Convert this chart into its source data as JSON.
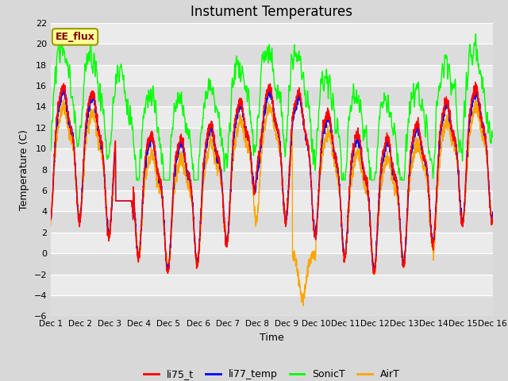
{
  "title": "Instument Temperatures",
  "xlabel": "Time",
  "ylabel": "Temperature (C)",
  "ylim": [
    -6,
    22
  ],
  "yticks": [
    -6,
    -4,
    -2,
    0,
    2,
    4,
    6,
    8,
    10,
    12,
    14,
    16,
    18,
    20,
    22
  ],
  "x_tick_labels": [
    "Dec 1",
    "Dec 2",
    "Dec 3",
    "Dec 4",
    "Dec 5",
    "Dec 6",
    "Dec 7",
    "Dec 8",
    "Dec 9",
    "Dec 10",
    "Dec 11",
    "Dec 12",
    "Dec 13",
    "Dec 14",
    "Dec 15",
    "Dec 16"
  ],
  "line_colors": [
    "red",
    "blue",
    "lime",
    "orange"
  ],
  "line_labels": [
    "li75_t",
    "li77_temp",
    "SonicT",
    "AirT"
  ],
  "annotation_text": "EE_flux",
  "annotation_color": "#800000",
  "annotation_bg": "#ffff99",
  "title_fontsize": 12,
  "axis_fontsize": 9,
  "legend_fontsize": 9,
  "bg_color": "#d8d8d8",
  "plot_bg": "#e8e8e8",
  "band_dark": "#dcdcdc",
  "band_light": "#ebebeb"
}
